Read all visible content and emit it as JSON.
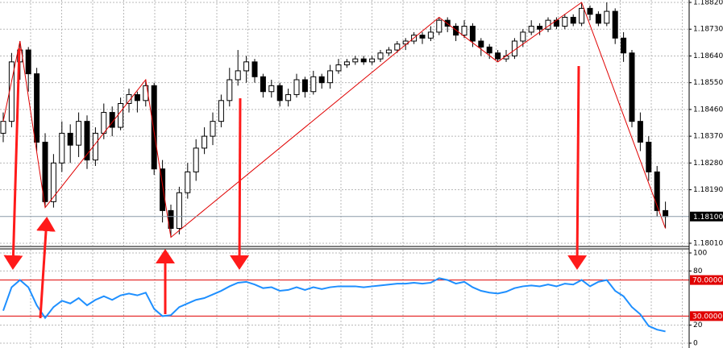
{
  "chart_data": [
    {
      "type": "candlestick",
      "ohlc": [
        [
          1.1838,
          1.1845,
          1.1835,
          1.1842
        ],
        [
          1.1842,
          1.1865,
          1.184,
          1.1862
        ],
        [
          1.1862,
          1.1869,
          1.1856,
          1.1866
        ],
        [
          1.1866,
          1.1867,
          1.1852,
          1.1858
        ],
        [
          1.1858,
          1.186,
          1.1832,
          1.1835
        ],
        [
          1.1835,
          1.1838,
          1.1813,
          1.1815
        ],
        [
          1.1815,
          1.1831,
          1.1813,
          1.1828
        ],
        [
          1.1828,
          1.1842,
          1.1825,
          1.1838
        ],
        [
          1.1838,
          1.1841,
          1.1828,
          1.1834
        ],
        [
          1.1834,
          1.1845,
          1.183,
          1.1842
        ],
        [
          1.1842,
          1.1844,
          1.1826,
          1.1829
        ],
        [
          1.1829,
          1.184,
          1.1827,
          1.1838
        ],
        [
          1.1838,
          1.1848,
          1.1836,
          1.1845
        ],
        [
          1.1845,
          1.1847,
          1.1837,
          1.184
        ],
        [
          1.184,
          1.185,
          1.1839,
          1.1848
        ],
        [
          1.1848,
          1.1853,
          1.1845,
          1.1851
        ],
        [
          1.1851,
          1.1852,
          1.1845,
          1.1849
        ],
        [
          1.1849,
          1.1856,
          1.1847,
          1.1854
        ],
        [
          1.1854,
          1.1855,
          1.1824,
          1.1826
        ],
        [
          1.1826,
          1.1829,
          1.1808,
          1.1812
        ],
        [
          1.1812,
          1.1814,
          1.1803,
          1.1806
        ],
        [
          1.1806,
          1.182,
          1.1804,
          1.1818
        ],
        [
          1.1818,
          1.1828,
          1.1816,
          1.1825
        ],
        [
          1.1825,
          1.1836,
          1.1822,
          1.1833
        ],
        [
          1.1833,
          1.184,
          1.1831,
          1.1837
        ],
        [
          1.1837,
          1.1845,
          1.1834,
          1.1842
        ],
        [
          1.1842,
          1.1851,
          1.184,
          1.1849
        ],
        [
          1.1849,
          1.186,
          1.1847,
          1.1856
        ],
        [
          1.1856,
          1.1866,
          1.1854,
          1.1859
        ],
        [
          1.1859,
          1.1864,
          1.1855,
          1.1862
        ],
        [
          1.1862,
          1.1863,
          1.1855,
          1.1857
        ],
        [
          1.1857,
          1.1858,
          1.185,
          1.1852
        ],
        [
          1.1852,
          1.1856,
          1.185,
          1.1854
        ],
        [
          1.1854,
          1.1855,
          1.1847,
          1.1849
        ],
        [
          1.1849,
          1.1853,
          1.1847,
          1.1851
        ],
        [
          1.1851,
          1.1858,
          1.185,
          1.1856
        ],
        [
          1.1856,
          1.1857,
          1.185,
          1.1852
        ],
        [
          1.1852,
          1.1859,
          1.1851,
          1.1857
        ],
        [
          1.1857,
          1.1858,
          1.1853,
          1.1855
        ],
        [
          1.1855,
          1.1861,
          1.1853,
          1.1859
        ],
        [
          1.1859,
          1.1863,
          1.1858,
          1.1861
        ],
        [
          1.1861,
          1.1863,
          1.186,
          1.1862
        ],
        [
          1.1862,
          1.1864,
          1.1861,
          1.1863
        ],
        [
          1.1863,
          1.1864,
          1.1861,
          1.1862
        ],
        [
          1.1862,
          1.1864,
          1.1861,
          1.1863
        ],
        [
          1.1863,
          1.1866,
          1.1862,
          1.1865
        ],
        [
          1.1865,
          1.1867,
          1.1864,
          1.1866
        ],
        [
          1.1866,
          1.1869,
          1.1865,
          1.1868
        ],
        [
          1.1868,
          1.187,
          1.1866,
          1.1869
        ],
        [
          1.1869,
          1.1872,
          1.1868,
          1.1871
        ],
        [
          1.1871,
          1.1872,
          1.1868,
          1.187
        ],
        [
          1.187,
          1.1874,
          1.1869,
          1.1872
        ],
        [
          1.1872,
          1.1877,
          1.1871,
          1.1876
        ],
        [
          1.1876,
          1.1877,
          1.1872,
          1.1874
        ],
        [
          1.1874,
          1.1875,
          1.1869,
          1.1871
        ],
        [
          1.1871,
          1.1876,
          1.187,
          1.1874
        ],
        [
          1.1874,
          1.1875,
          1.1867,
          1.1869
        ],
        [
          1.1869,
          1.187,
          1.1864,
          1.1867
        ],
        [
          1.1867,
          1.1868,
          1.1863,
          1.1865
        ],
        [
          1.1865,
          1.1866,
          1.1862,
          1.1863
        ],
        [
          1.1863,
          1.1866,
          1.1862,
          1.1864
        ],
        [
          1.1864,
          1.187,
          1.1863,
          1.1869
        ],
        [
          1.1869,
          1.1873,
          1.1867,
          1.1872
        ],
        [
          1.1872,
          1.1876,
          1.1871,
          1.1874
        ],
        [
          1.1874,
          1.1875,
          1.1871,
          1.1873
        ],
        [
          1.1873,
          1.1877,
          1.1872,
          1.1876
        ],
        [
          1.1876,
          1.1877,
          1.1873,
          1.1874
        ],
        [
          1.1874,
          1.1878,
          1.1873,
          1.1877
        ],
        [
          1.1877,
          1.1878,
          1.1874,
          1.1875
        ],
        [
          1.1875,
          1.1882,
          1.1874,
          1.188
        ],
        [
          1.188,
          1.1881,
          1.1876,
          1.1878
        ],
        [
          1.1878,
          1.1879,
          1.1874,
          1.1875
        ],
        [
          1.1875,
          1.1882,
          1.1874,
          1.1879
        ],
        [
          1.1879,
          1.188,
          1.1868,
          1.187
        ],
        [
          1.187,
          1.1872,
          1.1862,
          1.1865
        ],
        [
          1.1865,
          1.1866,
          1.184,
          1.1842
        ],
        [
          1.1842,
          1.1845,
          1.1832,
          1.1835
        ],
        [
          1.1835,
          1.1837,
          1.1822,
          1.1825
        ],
        [
          1.1825,
          1.1827,
          1.181,
          1.1812
        ],
        [
          1.1812,
          1.1815,
          1.1806,
          1.181
        ]
      ],
      "up_color": "#ffffff",
      "down_color": "#000000",
      "ylim": [
        1.1801,
        1.1882
      ],
      "yticks": [
        {
          "value": 1.1801,
          "label": "1.18010"
        },
        {
          "value": 1.1819,
          "label": "1.18190"
        },
        {
          "value": 1.1828,
          "label": "1.18280"
        },
        {
          "value": 1.1837,
          "label": "1.18370"
        },
        {
          "value": 1.1846,
          "label": "1.18460"
        },
        {
          "value": 1.1855,
          "label": "1.18550"
        },
        {
          "value": 1.1864,
          "label": "1.18640"
        },
        {
          "value": 1.1873,
          "label": "1.18730"
        },
        {
          "value": 1.1882,
          "label": "1.18820"
        }
      ],
      "grid": true,
      "current_price": {
        "value": 1.181,
        "label": "1.18100"
      },
      "zigzag": {
        "color": "#e00000",
        "x": [
          0,
          2,
          5,
          17,
          20,
          52,
          59,
          69,
          79
        ],
        "values": [
          1.1842,
          1.1869,
          1.1813,
          1.1856,
          1.1803,
          1.1877,
          1.1862,
          1.1882,
          1.1806
        ]
      }
    },
    {
      "type": "line",
      "series": [
        {
          "color": "#1e8fff",
          "values": [
            36,
            62,
            70,
            62,
            42,
            28,
            40,
            47,
            44,
            50,
            42,
            48,
            52,
            48,
            53,
            55,
            53,
            56,
            38,
            30,
            31,
            40,
            44,
            48,
            50,
            54,
            58,
            63,
            67,
            68,
            65,
            61,
            62,
            58,
            59,
            62,
            59,
            62,
            60,
            62,
            63,
            63,
            63,
            62,
            63,
            64,
            65,
            66,
            66,
            67,
            66,
            67,
            72,
            70,
            66,
            68,
            62,
            58,
            56,
            55,
            57,
            61,
            63,
            64,
            63,
            65,
            63,
            66,
            65,
            70,
            63,
            68,
            70,
            58,
            52,
            40,
            32,
            19,
            15,
            13
          ]
        }
      ],
      "ylim": [
        0,
        100
      ],
      "yticks": [
        0,
        20,
        80,
        100
      ],
      "grid": true,
      "levels": [
        {
          "value": 70,
          "label": "70.0000"
        },
        {
          "value": 30,
          "label": "30.0000"
        }
      ],
      "level_color": "#e00000"
    }
  ]
}
